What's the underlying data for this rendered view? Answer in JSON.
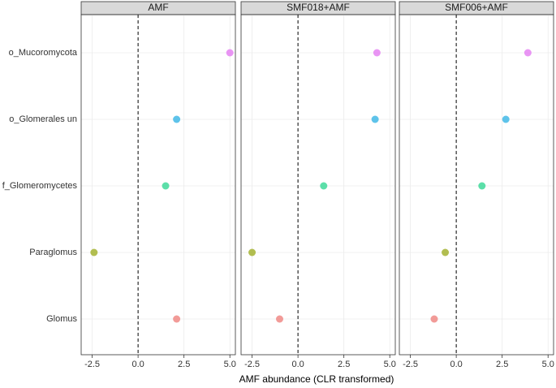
{
  "chart_data": {
    "type": "dot",
    "x_label": "AMF abundance (CLR transformed)",
    "categories": [
      "o_Mucoromycota",
      "o_Glomerales un",
      "f_Glomeromycetes",
      "Paraglomus",
      "Glomus"
    ],
    "colors": [
      "#e583f2",
      "#42b9e6",
      "#3fd99a",
      "#a5b332",
      "#f08a86"
    ],
    "facets": [
      {
        "title": "AMF",
        "values": [
          5.0,
          2.1,
          1.5,
          -2.4,
          2.1
        ]
      },
      {
        "title": "SMF018+AMF",
        "values": [
          4.3,
          4.2,
          1.4,
          -2.5,
          -1.0
        ]
      },
      {
        "title": "SMF006+AMF",
        "values": [
          3.9,
          2.7,
          1.4,
          -0.6,
          -1.2
        ]
      }
    ],
    "xlim": [
      -3.1,
      5.3
    ],
    "xticks": [
      -2.5,
      {
        "value": 0,
        "label": "0.0"
      },
      2.5,
      {
        "value": 5,
        "label": "5.0"
      }
    ],
    "vline": 0,
    "grid": true
  }
}
